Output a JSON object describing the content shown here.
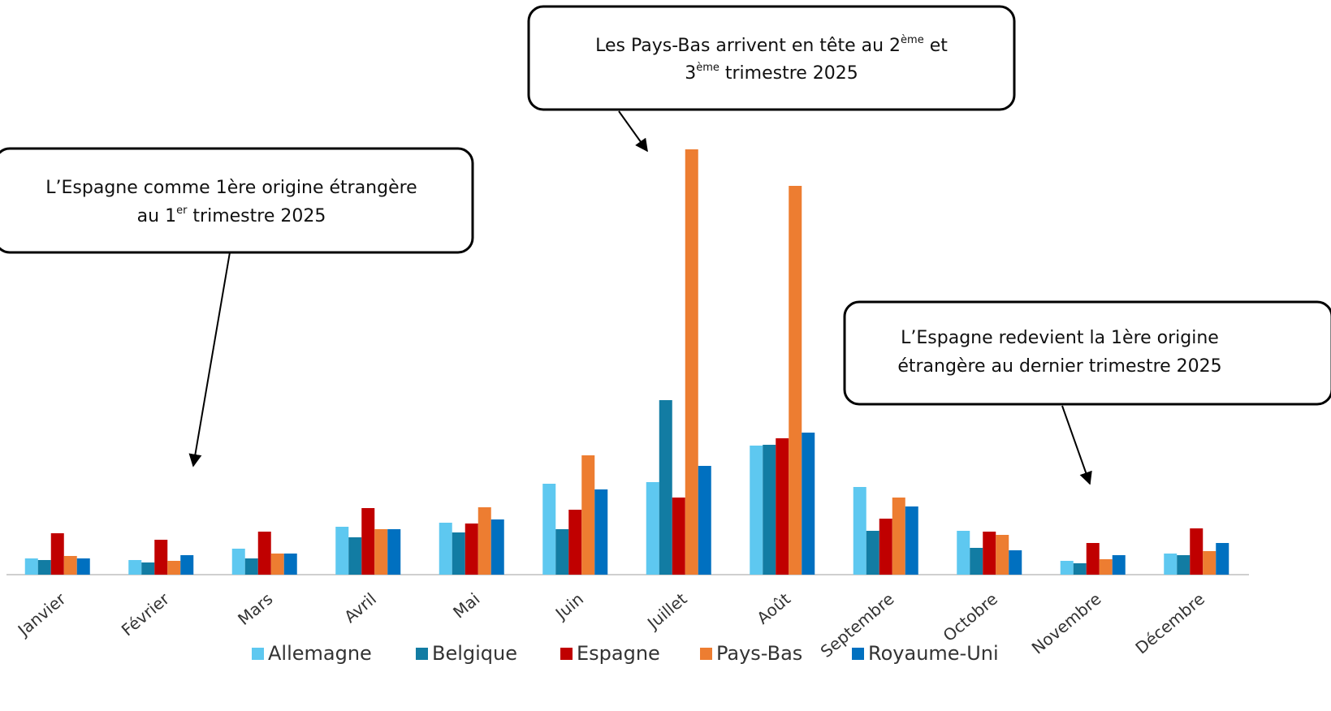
{
  "chart_data": {
    "type": "bar",
    "categories": [
      "Janvier",
      "Février",
      "Mars",
      "Avril",
      "Mai",
      "Juin",
      "Juillet",
      "Août",
      "Septembre",
      "Octobre",
      "Novembre",
      "Décembre"
    ],
    "series": [
      {
        "name": "Allemagne",
        "color": "#5ec8f0",
        "values": [
          20,
          18,
          32,
          59,
          64,
          112,
          114,
          159,
          108,
          54,
          17,
          26
        ]
      },
      {
        "name": "Belgique",
        "color": "#127ca3",
        "values": [
          18,
          15,
          20,
          46,
          52,
          56,
          215,
          160,
          54,
          33,
          14,
          24
        ]
      },
      {
        "name": "Espagne",
        "color": "#c00000",
        "values": [
          51,
          43,
          53,
          82,
          63,
          80,
          95,
          168,
          69,
          53,
          39,
          57
        ]
      },
      {
        "name": "Pays-Bas",
        "color": "#ed7d31",
        "values": [
          23,
          17,
          26,
          56,
          83,
          147,
          524,
          479,
          95,
          49,
          19,
          29
        ]
      },
      {
        "name": "Royaume-Uni",
        "color": "#0070c0",
        "values": [
          20,
          24,
          26,
          56,
          68,
          105,
          134,
          175,
          84,
          30,
          24,
          39
        ]
      }
    ],
    "ylim": [
      0,
      530
    ],
    "legend": "bottom",
    "annotations": [
      [
        "L’Espagne comme 1ère origine étrangère",
        [
          "au 1",
          "er",
          " trimestre 2025"
        ]
      ],
      [
        [
          "Les Pays-Bas arrivent en tête au 2",
          "ème",
          " et"
        ],
        [
          "3",
          "ème",
          " trimestre 2025"
        ]
      ],
      [
        "L’Espagne redevient la 1ère origine",
        "étrangère au dernier trimestre 2025"
      ]
    ]
  }
}
